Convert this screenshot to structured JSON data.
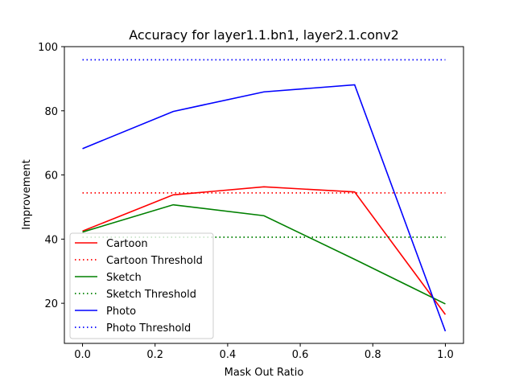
{
  "chart_data": {
    "type": "line",
    "title": "Accuracy for layer1.1.bn1, layer2.1.conv2",
    "xlabel": "Mask Out Ratio",
    "ylabel": "Improvement",
    "xlim": [
      -0.05,
      1.05
    ],
    "ylim": [
      7.5,
      100
    ],
    "xticks": [
      0.0,
      0.2,
      0.4,
      0.6,
      0.8,
      1.0
    ],
    "xtick_labels": [
      "0.0",
      "0.2",
      "0.4",
      "0.6",
      "0.8",
      "1.0"
    ],
    "yticks": [
      20,
      40,
      60,
      80,
      100
    ],
    "ytick_labels": [
      "20",
      "40",
      "60",
      "80",
      "100"
    ],
    "grid": false,
    "legend_position": "lower-left",
    "x": [
      0.0,
      0.25,
      0.5,
      0.75,
      1.0
    ],
    "series": [
      {
        "name": "Cartoon",
        "style": "solid",
        "color": "#ff0000",
        "values": [
          42.5,
          53.8,
          56.3,
          54.7,
          16.5
        ]
      },
      {
        "name": "Cartoon Threshold",
        "style": "dotted",
        "color": "#ff0000",
        "values": [
          54.4,
          54.4,
          54.4,
          54.4,
          54.4
        ]
      },
      {
        "name": "Sketch",
        "style": "solid",
        "color": "#008000",
        "values": [
          42.2,
          50.7,
          47.3,
          33.7,
          19.8
        ]
      },
      {
        "name": "Sketch Threshold",
        "style": "dotted",
        "color": "#008000",
        "values": [
          40.6,
          40.6,
          40.6,
          40.6,
          40.6
        ]
      },
      {
        "name": "Photo",
        "style": "solid",
        "color": "#0000ff",
        "values": [
          68.2,
          79.8,
          85.9,
          88.1,
          11.3
        ]
      },
      {
        "name": "Photo Threshold",
        "style": "dotted",
        "color": "#0000ff",
        "values": [
          95.9,
          95.9,
          95.9,
          95.9,
          95.9
        ]
      }
    ]
  }
}
